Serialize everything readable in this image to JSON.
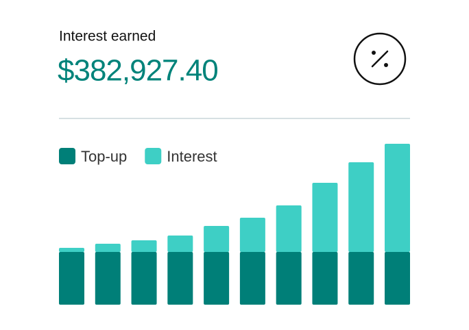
{
  "header": {
    "label": "Interest earned",
    "amount": "$382,927.40"
  },
  "chart_data": {
    "type": "bar",
    "stacked": true,
    "categories": [
      null,
      null,
      null,
      null,
      null,
      null,
      null,
      null,
      null,
      null
    ],
    "series": [
      {
        "name": "Top-up",
        "color": "#007f78",
        "values": [
          77,
          77,
          77,
          77,
          77,
          77,
          77,
          77,
          77,
          77
        ]
      },
      {
        "name": "Interest",
        "color": "#3ecfc5",
        "values": [
          6,
          12,
          17,
          24,
          38,
          50,
          68,
          101,
          131,
          158
        ]
      }
    ],
    "ylim": [
      0,
      240
    ],
    "grid": false
  }
}
